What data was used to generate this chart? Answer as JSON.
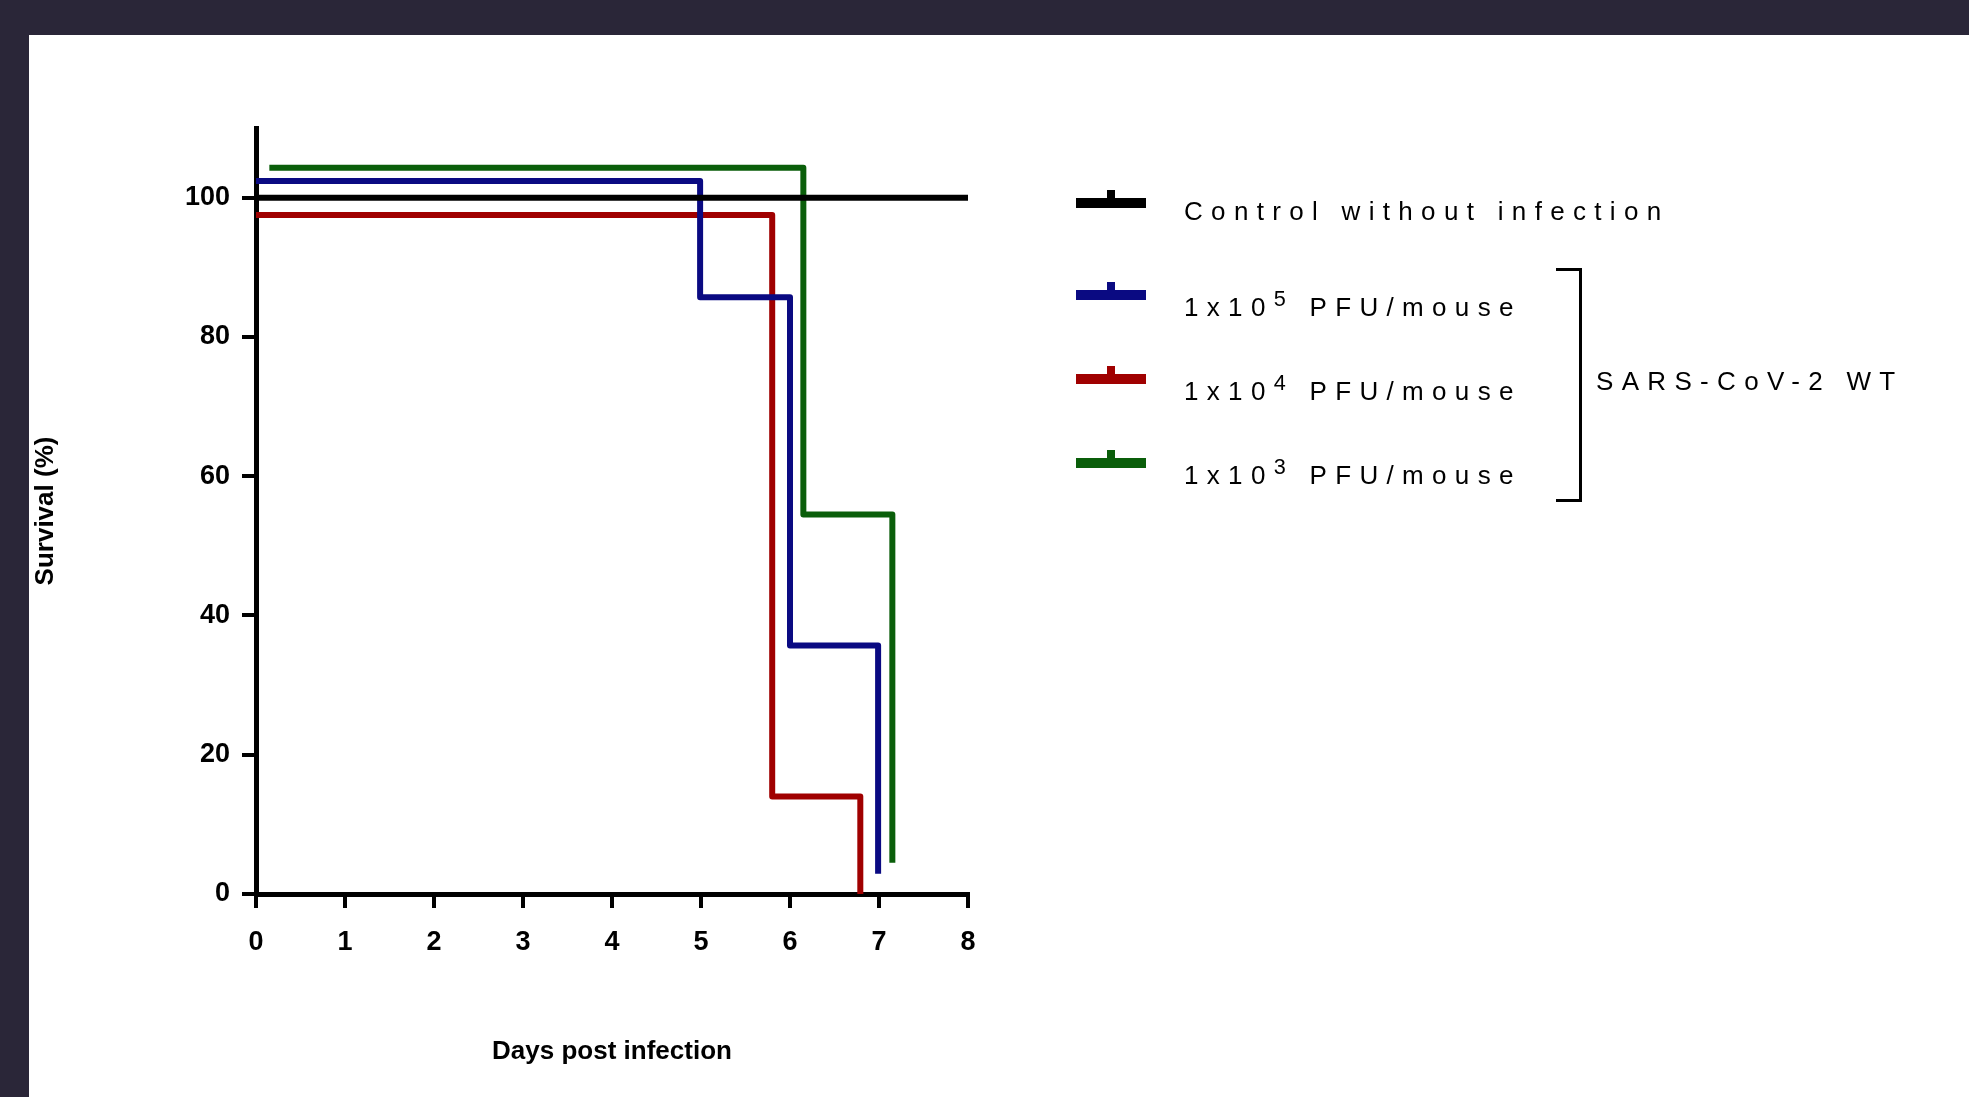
{
  "chart_data": {
    "type": "step",
    "xlabel": "Days post infection",
    "ylabel": "Survival (%)",
    "xlim": [
      0,
      8
    ],
    "xticks": [
      0,
      1,
      2,
      3,
      4,
      5,
      6,
      7,
      8
    ],
    "ylim": [
      0,
      110
    ],
    "yticks": [
      0,
      20,
      40,
      60,
      80,
      100
    ],
    "grid": false,
    "legend": "right",
    "line_style": "solid",
    "marker": "none",
    "annotations": [
      "SARS-CoV-2 WT"
    ],
    "series": [
      {
        "name": "Control without infection",
        "color": "#000000",
        "x": [
          0,
          8
        ],
        "values": [
          100,
          100
        ]
      },
      {
        "name": "1x10$^{5}$ PFU/mouse",
        "color": "#0a0a82",
        "x": [
          0,
          4.99,
          6.0,
          6.99
        ],
        "values": [
          102.4,
          85.7,
          35.7,
          2.9
        ]
      },
      {
        "name": "1x10$^{4}$ PFU/mouse",
        "color": "#a00000",
        "x": [
          0,
          5.8,
          6.79
        ],
        "values": [
          97.5,
          14.0,
          0
        ]
      },
      {
        "name": "1x10$^{3}$ PFU/mouse",
        "color": "#0a5e0a",
        "x": [
          0.15,
          6.15,
          7.15
        ],
        "values": [
          104.3,
          54.5,
          4.5
        ]
      }
    ]
  }
}
